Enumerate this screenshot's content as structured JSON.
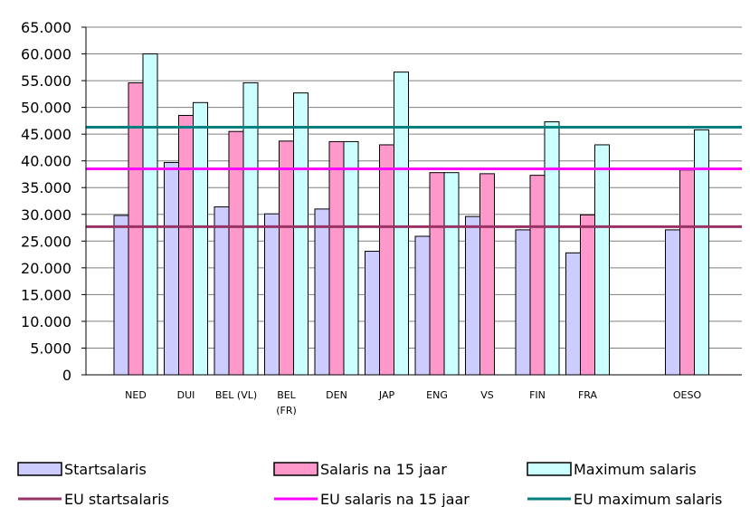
{
  "chart_data": {
    "type": "bar",
    "categories": [
      "NED",
      "DUI",
      "BEL (VL)",
      "BEL (FR)",
      "DEN",
      "JAP",
      "ENG",
      "VS",
      "FIN",
      "FRA",
      "OESO"
    ],
    "category_labels": [
      [
        "NED"
      ],
      [
        "DUI"
      ],
      [
        "BEL (VL)"
      ],
      [
        "BEL",
        "(FR)"
      ],
      [
        "DEN"
      ],
      [
        "JAP"
      ],
      [
        "ENG"
      ],
      [
        "VS"
      ],
      [
        "FIN"
      ],
      [
        "FRA"
      ],
      [
        "OESO"
      ]
    ],
    "series": [
      {
        "name": "Startsalaris",
        "color": "#ccccff",
        "values": [
          29800,
          39700,
          31400,
          30100,
          31000,
          23100,
          25900,
          29600,
          27100,
          22800,
          27100
        ]
      },
      {
        "name": "Salaris na 15 jaar",
        "color": "#ff99cc",
        "values": [
          54600,
          48500,
          45500,
          43700,
          43600,
          43000,
          37800,
          37600,
          37300,
          29900,
          38300
        ]
      },
      {
        "name": "Maximum salaris",
        "color": "#ccffff",
        "values": [
          60000,
          50900,
          54600,
          52700,
          43600,
          56600,
          37800,
          null,
          47300,
          43000,
          45800
        ]
      }
    ],
    "reference_lines": [
      {
        "name": "EU startsalaris",
        "color": "#993366",
        "value": 27700
      },
      {
        "name": "EU salaris na 15 jaar",
        "color": "#ff00ff",
        "value": 38500
      },
      {
        "name": "EU maximum salaris",
        "color": "#008080",
        "value": 46300
      }
    ],
    "ylim": [
      0,
      65000
    ],
    "yticks": [
      0,
      5000,
      10000,
      15000,
      20000,
      25000,
      30000,
      35000,
      40000,
      45000,
      50000,
      55000,
      60000,
      65000
    ],
    "ytick_labels": [
      "0",
      "5.000",
      "10.000",
      "15.000",
      "20.000",
      "25.000",
      "30.000",
      "35.000",
      "40.000",
      "45.000",
      "50.000",
      "55.000",
      "60.000",
      "65.000"
    ],
    "grid": true,
    "legend_position": "bottom"
  }
}
